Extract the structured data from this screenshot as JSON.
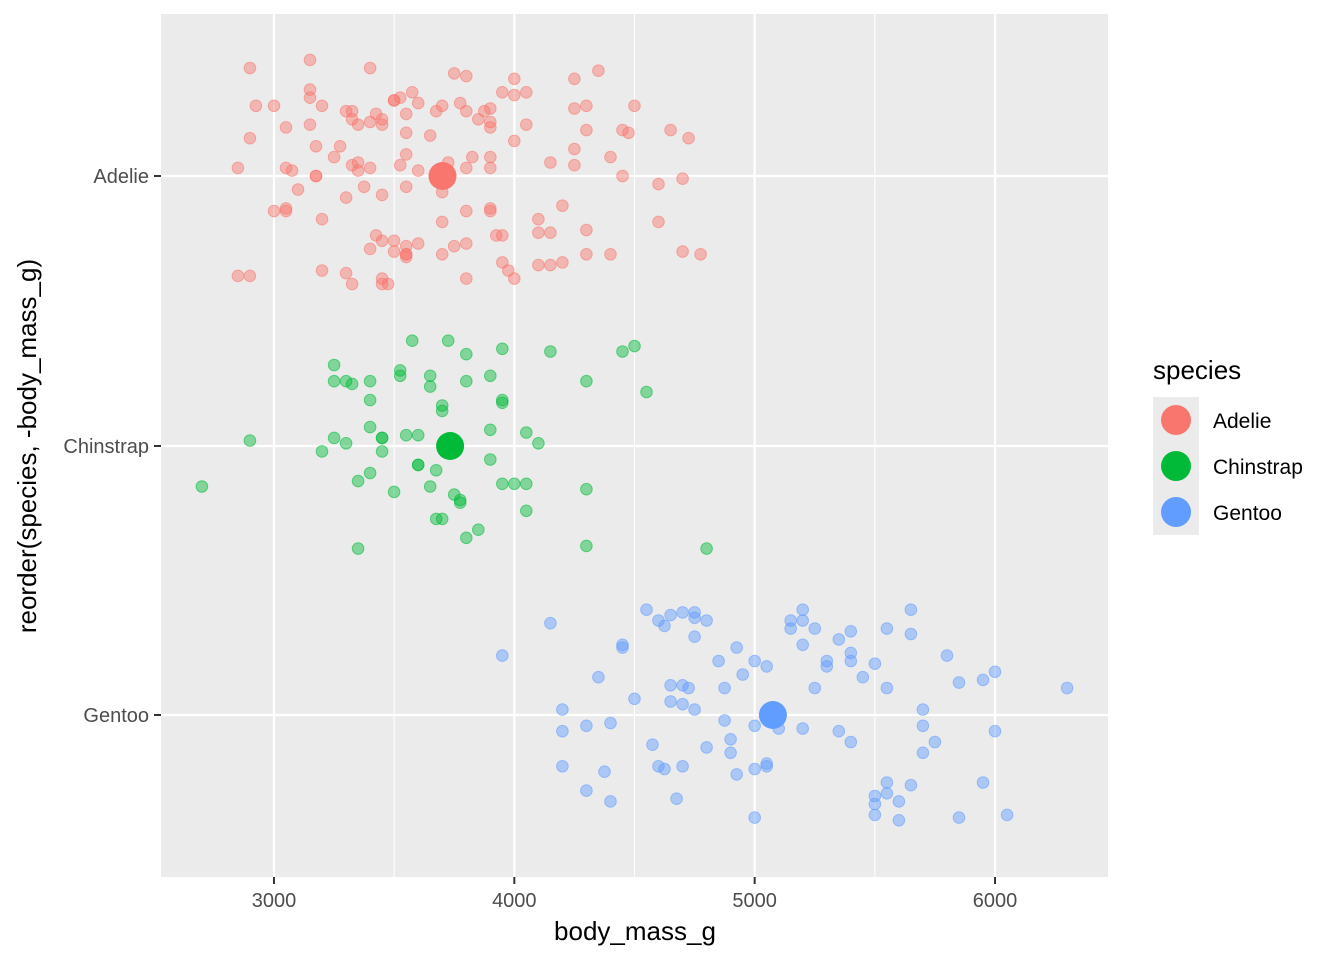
{
  "chart_data": {
    "type": "scatter",
    "title": "",
    "xlabel": "body_mass_g",
    "ylabel": "reorder(species, -body_mass_g)",
    "xlim": [
      2530,
      6470
    ],
    "x_ticks": [
      3000,
      4000,
      5000,
      6000
    ],
    "categories": [
      "Adelie",
      "Chinstrap",
      "Gentoo"
    ],
    "grid": true,
    "legend": {
      "title": "species",
      "position": "right"
    },
    "series": [
      {
        "name": "Adelie",
        "color": "#F8766D",
        "mean": 3701,
        "points": [
          [
            2850,
            -0.03
          ],
          [
            2850,
            0.37
          ],
          [
            2900,
            0.37
          ],
          [
            2900,
            -0.4
          ],
          [
            2900,
            -0.14
          ],
          [
            2925,
            -0.26
          ],
          [
            3000,
            -0.26
          ],
          [
            3000,
            0.13
          ],
          [
            3050,
            0.12
          ],
          [
            3050,
            0.13
          ],
          [
            3050,
            -0.18
          ],
          [
            3050,
            -0.03
          ],
          [
            3075,
            -0.02
          ],
          [
            3100,
            0.05
          ],
          [
            3150,
            -0.43
          ],
          [
            3150,
            -0.32
          ],
          [
            3150,
            -0.19
          ],
          [
            3150,
            -0.29
          ],
          [
            3175,
            -0.11
          ],
          [
            3175,
            0.0
          ],
          [
            3175,
            0.0
          ],
          [
            3200,
            0.16
          ],
          [
            3200,
            0.35
          ],
          [
            3200,
            -0.26
          ],
          [
            3250,
            -0.07
          ],
          [
            3275,
            -0.11
          ],
          [
            3300,
            -0.24
          ],
          [
            3300,
            0.08
          ],
          [
            3300,
            0.36
          ],
          [
            3325,
            -0.04
          ],
          [
            3325,
            0.4
          ],
          [
            3325,
            -0.21
          ],
          [
            3325,
            -0.24
          ],
          [
            3350,
            -0.02
          ],
          [
            3350,
            -0.19
          ],
          [
            3350,
            -0.05
          ],
          [
            3375,
            0.04
          ],
          [
            3400,
            -0.4
          ],
          [
            3400,
            0.27
          ],
          [
            3400,
            -0.2
          ],
          [
            3400,
            -0.03
          ],
          [
            3425,
            0.22
          ],
          [
            3425,
            -0.23
          ],
          [
            3450,
            -0.19
          ],
          [
            3450,
            0.24
          ],
          [
            3450,
            -0.21
          ],
          [
            3450,
            0.38
          ],
          [
            3450,
            0.07
          ],
          [
            3450,
            0.4
          ],
          [
            3475,
            0.4
          ],
          [
            3500,
            -0.28
          ],
          [
            3500,
            -0.28
          ],
          [
            3500,
            0.24
          ],
          [
            3500,
            0.28
          ],
          [
            3525,
            -0.29
          ],
          [
            3525,
            -0.04
          ],
          [
            3550,
            0.29
          ],
          [
            3550,
            0.04
          ],
          [
            3550,
            0.3
          ],
          [
            3550,
            0.26
          ],
          [
            3550,
            0.29
          ],
          [
            3550,
            -0.16
          ],
          [
            3550,
            -0.08
          ],
          [
            3550,
            -0.23
          ],
          [
            3575,
            -0.31
          ],
          [
            3600,
            -0.27
          ],
          [
            3600,
            -0.02
          ],
          [
            3600,
            0.25
          ],
          [
            3650,
            -0.15
          ],
          [
            3675,
            -0.24
          ],
          [
            3700,
            0.06
          ],
          [
            3700,
            0.29
          ],
          [
            3700,
            0.17
          ],
          [
            3700,
            -0.26
          ],
          [
            3725,
            -0.05
          ],
          [
            3750,
            0.26
          ],
          [
            3750,
            -0.38
          ],
          [
            3775,
            -0.27
          ],
          [
            3800,
            -0.37
          ],
          [
            3800,
            -0.24
          ],
          [
            3800,
            -0.03
          ],
          [
            3800,
            0.13
          ],
          [
            3800,
            0.25
          ],
          [
            3800,
            0.38
          ],
          [
            3825,
            -0.07
          ],
          [
            3850,
            -0.21
          ],
          [
            3875,
            -0.24
          ],
          [
            3900,
            0.13
          ],
          [
            3900,
            -0.25
          ],
          [
            3900,
            -0.03
          ],
          [
            3900,
            -0.2
          ],
          [
            3900,
            0.12
          ],
          [
            3900,
            -0.07
          ],
          [
            3900,
            -0.18
          ],
          [
            3925,
            0.22
          ],
          [
            3950,
            0.22
          ],
          [
            3950,
            0.32
          ],
          [
            3950,
            -0.31
          ],
          [
            3975,
            0.35
          ],
          [
            4000,
            -0.36
          ],
          [
            4000,
            -0.3
          ],
          [
            4000,
            -0.13
          ],
          [
            4000,
            0.38
          ],
          [
            4050,
            -0.31
          ],
          [
            4050,
            -0.19
          ],
          [
            4100,
            0.16
          ],
          [
            4100,
            0.21
          ],
          [
            4100,
            0.33
          ],
          [
            4150,
            0.21
          ],
          [
            4150,
            -0.05
          ],
          [
            4150,
            0.33
          ],
          [
            4200,
            0.11
          ],
          [
            4200,
            0.32
          ],
          [
            4250,
            -0.36
          ],
          [
            4250,
            -0.25
          ],
          [
            4250,
            -0.1
          ],
          [
            4250,
            -0.04
          ],
          [
            4300,
            -0.26
          ],
          [
            4300,
            -0.17
          ],
          [
            4300,
            0.29
          ],
          [
            4300,
            0.2
          ],
          [
            4350,
            -0.39
          ],
          [
            4400,
            -0.07
          ],
          [
            4400,
            0.29
          ],
          [
            4450,
            -0.17
          ],
          [
            4450,
            0.0
          ],
          [
            4475,
            -0.16
          ],
          [
            4500,
            -0.26
          ],
          [
            4600,
            0.03
          ],
          [
            4600,
            0.17
          ],
          [
            4650,
            -0.17
          ],
          [
            4700,
            0.28
          ],
          [
            4700,
            0.01
          ],
          [
            4725,
            -0.14
          ],
          [
            4775,
            0.29
          ]
        ]
      },
      {
        "name": "Chinstrap",
        "color": "#00BA38",
        "mean": 3733,
        "points": [
          [
            2700,
            0.15
          ],
          [
            2900,
            -0.02
          ],
          [
            3200,
            0.02
          ],
          [
            3250,
            -0.03
          ],
          [
            3250,
            -0.3
          ],
          [
            3250,
            -0.24
          ],
          [
            3300,
            -0.24
          ],
          [
            3300,
            -0.01
          ],
          [
            3325,
            -0.23
          ],
          [
            3350,
            0.13
          ],
          [
            3350,
            0.38
          ],
          [
            3400,
            -0.24
          ],
          [
            3400,
            0.1
          ],
          [
            3400,
            -0.17
          ],
          [
            3400,
            -0.07
          ],
          [
            3450,
            0.02
          ],
          [
            3450,
            -0.03
          ],
          [
            3450,
            -0.03
          ],
          [
            3500,
            0.17
          ],
          [
            3525,
            -0.28
          ],
          [
            3525,
            -0.26
          ],
          [
            3550,
            -0.04
          ],
          [
            3575,
            -0.39
          ],
          [
            3600,
            0.07
          ],
          [
            3600,
            -0.04
          ],
          [
            3600,
            0.07
          ],
          [
            3650,
            -0.26
          ],
          [
            3650,
            0.15
          ],
          [
            3650,
            -0.22
          ],
          [
            3675,
            0.27
          ],
          [
            3675,
            0.09
          ],
          [
            3700,
            0.27
          ],
          [
            3700,
            -0.13
          ],
          [
            3700,
            -0.15
          ],
          [
            3725,
            -0.39
          ],
          [
            3750,
            0.18
          ],
          [
            3775,
            0.2
          ],
          [
            3775,
            0.21
          ],
          [
            3800,
            0.34
          ],
          [
            3800,
            -0.34
          ],
          [
            3800,
            -0.24
          ],
          [
            3850,
            0.31
          ],
          [
            3900,
            -0.06
          ],
          [
            3900,
            -0.26
          ],
          [
            3900,
            0.05
          ],
          [
            3950,
            -0.36
          ],
          [
            3950,
            -0.16
          ],
          [
            3950,
            -0.17
          ],
          [
            3950,
            0.14
          ],
          [
            4000,
            0.14
          ],
          [
            4050,
            0.24
          ],
          [
            4050,
            -0.05
          ],
          [
            4050,
            0.14
          ],
          [
            4100,
            -0.01
          ],
          [
            4150,
            -0.35
          ],
          [
            4300,
            0.37
          ],
          [
            4300,
            0.16
          ],
          [
            4450,
            -0.35
          ],
          [
            4500,
            -0.37
          ],
          [
            4550,
            -0.2
          ],
          [
            4300,
            -0.24
          ],
          [
            4800,
            0.38
          ]
        ]
      },
      {
        "name": "Gentoo",
        "color": "#619CFF",
        "mean": 5076,
        "points": [
          [
            3950,
            -0.22
          ],
          [
            4150,
            -0.34
          ],
          [
            4200,
            0.19
          ],
          [
            4200,
            0.06
          ],
          [
            4200,
            -0.02
          ],
          [
            4300,
            0.28
          ],
          [
            4300,
            0.04
          ],
          [
            4350,
            -0.14
          ],
          [
            4375,
            0.21
          ],
          [
            4400,
            0.03
          ],
          [
            4400,
            0.32
          ],
          [
            4450,
            -0.26
          ],
          [
            4450,
            -0.25
          ],
          [
            4500,
            -0.06
          ],
          [
            4550,
            -0.39
          ],
          [
            4575,
            0.11
          ],
          [
            4600,
            -0.35
          ],
          [
            4600,
            0.19
          ],
          [
            4625,
            -0.33
          ],
          [
            4625,
            0.2
          ],
          [
            4650,
            -0.05
          ],
          [
            4650,
            -0.37
          ],
          [
            4650,
            -0.11
          ],
          [
            4675,
            0.31
          ],
          [
            4700,
            -0.38
          ],
          [
            4700,
            0.19
          ],
          [
            4700,
            -0.11
          ],
          [
            4700,
            -0.04
          ],
          [
            4725,
            -0.1
          ],
          [
            4750,
            -0.38
          ],
          [
            4750,
            -0.29
          ],
          [
            4750,
            -0.36
          ],
          [
            4750,
            -0.02
          ],
          [
            4800,
            0.12
          ],
          [
            4800,
            -0.35
          ],
          [
            4850,
            -0.2
          ],
          [
            4875,
            0.02
          ],
          [
            4875,
            -0.1
          ],
          [
            4900,
            0.09
          ],
          [
            4900,
            0.14
          ],
          [
            4925,
            0.22
          ],
          [
            4925,
            -0.25
          ],
          [
            4950,
            -0.15
          ],
          [
            5000,
            0.2
          ],
          [
            5000,
            -0.2
          ],
          [
            5000,
            0.04
          ],
          [
            5000,
            0.38
          ],
          [
            5050,
            -0.18
          ],
          [
            5050,
            0.18
          ],
          [
            5050,
            0.19
          ],
          [
            5100,
            0.05
          ],
          [
            5150,
            -0.35
          ],
          [
            5150,
            -0.32
          ],
          [
            5200,
            0.05
          ],
          [
            5200,
            -0.26
          ],
          [
            5200,
            -0.35
          ],
          [
            5200,
            -0.39
          ],
          [
            5250,
            -0.32
          ],
          [
            5250,
            -0.1
          ],
          [
            5300,
            -0.2
          ],
          [
            5300,
            -0.18
          ],
          [
            5350,
            -0.28
          ],
          [
            5350,
            0.06
          ],
          [
            5400,
            0.1
          ],
          [
            5400,
            -0.31
          ],
          [
            5400,
            -0.2
          ],
          [
            5400,
            -0.23
          ],
          [
            5450,
            -0.14
          ],
          [
            5500,
            0.3
          ],
          [
            5500,
            -0.19
          ],
          [
            5500,
            0.33
          ],
          [
            5500,
            0.37
          ],
          [
            5550,
            -0.32
          ],
          [
            5550,
            -0.1
          ],
          [
            5550,
            0.25
          ],
          [
            5550,
            0.29
          ],
          [
            5600,
            0.32
          ],
          [
            5600,
            0.39
          ],
          [
            5650,
            -0.39
          ],
          [
            5650,
            -0.3
          ],
          [
            5650,
            0.26
          ],
          [
            5700,
            0.04
          ],
          [
            5700,
            -0.02
          ],
          [
            5700,
            0.14
          ],
          [
            5750,
            0.1
          ],
          [
            5800,
            -0.22
          ],
          [
            5850,
            -0.12
          ],
          [
            5850,
            0.38
          ],
          [
            5950,
            -0.13
          ],
          [
            5950,
            0.25
          ],
          [
            6000,
            -0.16
          ],
          [
            6000,
            0.06
          ],
          [
            6050,
            0.37
          ],
          [
            6300,
            -0.1
          ]
        ]
      }
    ]
  }
}
